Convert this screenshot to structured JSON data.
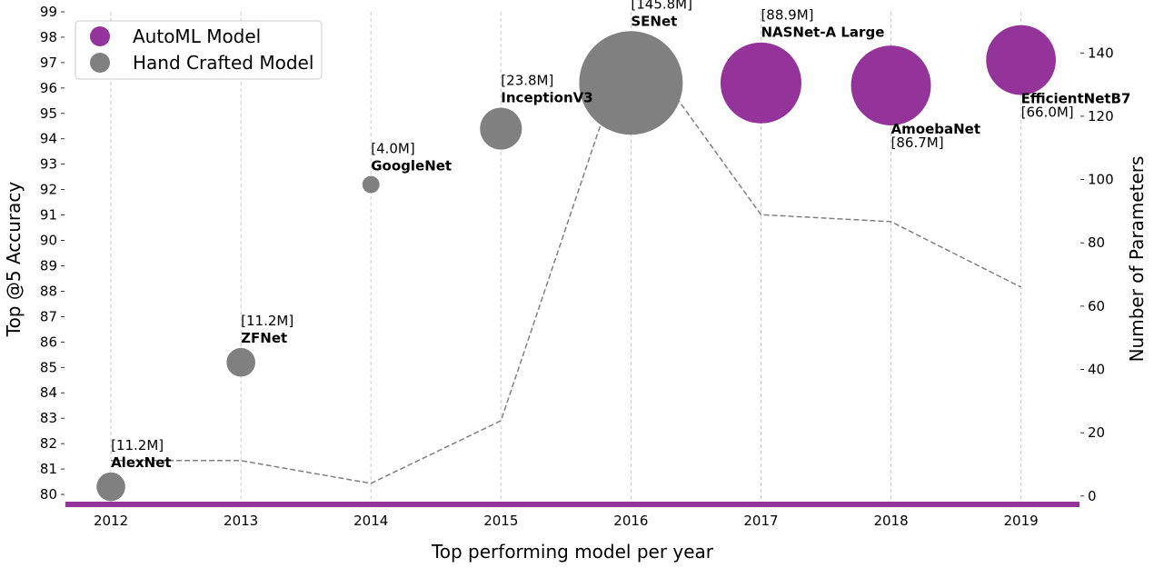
{
  "chart_data": {
    "type": "scatter",
    "title": "",
    "xlabel": "Top performing model per year",
    "ylabel": "Top @5 Accuracy",
    "y2label": "Number of Parameters",
    "x": [
      2012,
      2013,
      2014,
      2015,
      2016,
      2017,
      2018,
      2019
    ],
    "xlim": [
      2011.65,
      2019.45
    ],
    "ylim": [
      79.5,
      99
    ],
    "y2lim": [
      -3.5,
      153
    ],
    "yticks": [
      80,
      81,
      82,
      83,
      84,
      85,
      86,
      87,
      88,
      89,
      90,
      91,
      92,
      93,
      94,
      95,
      96,
      97,
      98,
      99
    ],
    "y2ticks": [
      0,
      20,
      40,
      60,
      80,
      100,
      120,
      140
    ],
    "grid": "vertical dashed",
    "legend": {
      "placement": "top-left",
      "entries": [
        {
          "label": "AutoML Model",
          "color": "#943399"
        },
        {
          "label": "Hand Crafted Model",
          "color": "#808080"
        }
      ]
    },
    "points": [
      {
        "year": 2012,
        "name": "AlexNet",
        "params_label": "[11.2M]",
        "accuracy": 80.3,
        "params": 11.2,
        "kind": "hand",
        "label_pos": "above"
      },
      {
        "year": 2013,
        "name": "ZFNet",
        "params_label": "[11.2M]",
        "accuracy": 85.2,
        "params": 11.2,
        "kind": "hand",
        "label_pos": "above"
      },
      {
        "year": 2014,
        "name": "GoogleNet",
        "params_label": "[4.0M]",
        "accuracy": 92.2,
        "params": 4.0,
        "kind": "hand",
        "label_pos": "above"
      },
      {
        "year": 2015,
        "name": "InceptionV3",
        "params_label": "[23.8M]",
        "accuracy": 94.4,
        "params": 23.8,
        "kind": "hand",
        "label_pos": "above"
      },
      {
        "year": 2016,
        "name": "SENet",
        "params_label": "[145.8M]",
        "accuracy": 96.2,
        "params": 145.8,
        "kind": "hand",
        "label_pos": "above"
      },
      {
        "year": 2017,
        "name": "NASNet-A Large",
        "params_label": "[88.9M]",
        "accuracy": 96.2,
        "params": 88.9,
        "kind": "automl",
        "label_pos": "above"
      },
      {
        "year": 2018,
        "name": "AmoebaNet",
        "params_label": "[86.7M]",
        "accuracy": 96.1,
        "params": 86.7,
        "kind": "automl",
        "label_pos": "below"
      },
      {
        "year": 2019,
        "name": "EfficientNetB7",
        "params_label": "[66.0M]",
        "accuracy": 97.1,
        "params": 66.0,
        "kind": "automl",
        "label_pos": "below"
      }
    ],
    "colors": {
      "automl": "#943399",
      "hand": "#808080",
      "params_line": "#808080",
      "baseline": "#943399",
      "grid": "#cccccc"
    }
  }
}
